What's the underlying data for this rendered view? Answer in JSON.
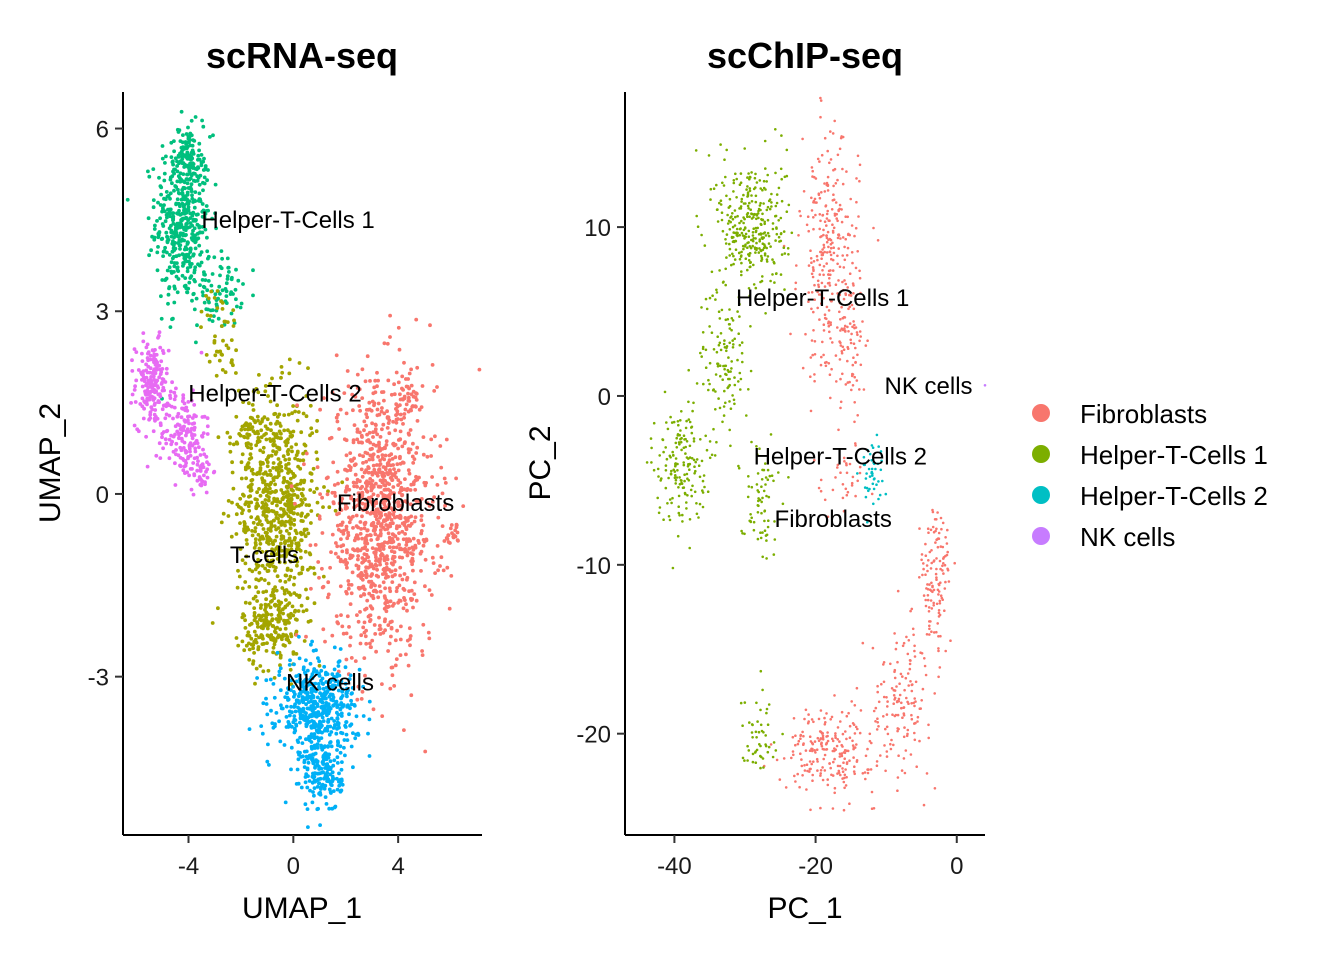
{
  "chart_data": [
    {
      "type": "scatter",
      "title": "scRNA-seq",
      "xlabel": "UMAP_1",
      "ylabel": "UMAP_2",
      "xlim": [
        -6.5,
        7.2
      ],
      "ylim": [
        -5.6,
        6.6
      ],
      "xticks": [
        -4,
        0,
        4
      ],
      "yticks": [
        -3,
        0,
        3,
        6
      ],
      "xtick_labels": [
        "-4",
        "0",
        "4"
      ],
      "ytick_labels": [
        "-3",
        "0",
        "3",
        "6"
      ],
      "grid": false,
      "cluster_labels": [
        {
          "text": "Helper-T-Cells 1",
          "x": -0.2,
          "y": 4.5
        },
        {
          "text": "Helper-T-Cells 2",
          "x": -0.7,
          "y": 1.65
        },
        {
          "text": "Fibroblasts",
          "x": 3.9,
          "y": -0.15
        },
        {
          "text": "T-cells",
          "x": -1.1,
          "y": -1.0
        },
        {
          "text": "NK cells",
          "x": 1.4,
          "y": -3.1
        }
      ],
      "series": [
        {
          "color": "#00BF7D",
          "regions": [
            {
              "x": -4.2,
              "y": 4.5,
              "sx": 0.75,
              "sy": 1.0,
              "n": 480
            },
            {
              "x": -4.0,
              "y": 5.6,
              "sx": 0.3,
              "sy": 0.3,
              "n": 60
            },
            {
              "x": -2.8,
              "y": 3.3,
              "sx": 0.6,
              "sy": 0.4,
              "n": 70
            }
          ]
        },
        {
          "color": "#E76BF3",
          "regions": [
            {
              "x": -5.4,
              "y": 1.8,
              "sx": 0.45,
              "sy": 0.5,
              "n": 180
            },
            {
              "x": -4.2,
              "y": 1.0,
              "sx": 0.6,
              "sy": 0.55,
              "n": 150
            },
            {
              "x": -3.5,
              "y": 0.4,
              "sx": 0.3,
              "sy": 0.3,
              "n": 40
            }
          ]
        },
        {
          "color": "#A3A500",
          "regions": [
            {
              "x": -0.6,
              "y": -0.2,
              "sx": 1.1,
              "sy": 1.3,
              "n": 700
            },
            {
              "x": -1.6,
              "y": 1.0,
              "sx": 0.6,
              "sy": 0.4,
              "n": 60
            },
            {
              "x": -2.8,
              "y": 2.6,
              "sx": 0.5,
              "sy": 0.6,
              "n": 45
            },
            {
              "x": -0.8,
              "y": -2.2,
              "sx": 0.8,
              "sy": 0.5,
              "n": 180
            }
          ]
        },
        {
          "color": "#F8766D",
          "regions": [
            {
              "x": 3.3,
              "y": -0.4,
              "sx": 1.5,
              "sy": 1.6,
              "n": 1050
            },
            {
              "x": 4.4,
              "y": 1.6,
              "sx": 0.3,
              "sy": 0.3,
              "n": 30
            },
            {
              "x": 6.1,
              "y": -0.7,
              "sx": 0.2,
              "sy": 0.15,
              "n": 20
            }
          ]
        },
        {
          "color": "#00B0F6",
          "regions": [
            {
              "x": 0.9,
              "y": -3.5,
              "sx": 1.1,
              "sy": 0.55,
              "n": 500
            },
            {
              "x": 1.1,
              "y": -4.6,
              "sx": 0.55,
              "sy": 0.45,
              "n": 160
            }
          ]
        }
      ]
    },
    {
      "type": "scatter",
      "title": "scChIP-seq",
      "xlabel": "PC_1",
      "ylabel": "PC_2",
      "xlim": [
        -47,
        4
      ],
      "ylim": [
        -26,
        18
      ],
      "xticks": [
        -40,
        -20,
        0
      ],
      "yticks": [
        -20,
        -10,
        0,
        10
      ],
      "xtick_labels": [
        "-40",
        "-20",
        "0"
      ],
      "ytick_labels": [
        "-20",
        "-10",
        "0",
        "10"
      ],
      "grid": false,
      "cluster_labels": [
        {
          "text": "Helper-T-Cells 1",
          "x": -19,
          "y": 5.8
        },
        {
          "text": "NK cells",
          "x": -4,
          "y": 0.6
        },
        {
          "text": "Helper-T-Cells 2",
          "x": -16.5,
          "y": -3.6
        },
        {
          "text": "Fibroblasts",
          "x": -17.5,
          "y": -7.3
        }
      ],
      "series": [
        {
          "color": "#F8766D",
          "regions": [
            {
              "x": -18,
              "y": 8,
              "sx": 3,
              "sy": 5,
              "n": 300
            },
            {
              "x": -15,
              "y": 3,
              "sx": 1.5,
              "sy": 3,
              "n": 60
            },
            {
              "x": -3,
              "y": -11,
              "sx": 1.6,
              "sy": 3.2,
              "n": 130
            },
            {
              "x": -8,
              "y": -18,
              "sx": 3,
              "sy": 3,
              "n": 140
            },
            {
              "x": -18,
              "y": -21,
              "sx": 4.5,
              "sy": 1.8,
              "n": 220
            },
            {
              "x": -16,
              "y": -5,
              "sx": 3,
              "sy": 1.5,
              "n": 35
            }
          ]
        },
        {
          "color": "#7CAE00",
          "regions": [
            {
              "x": -29,
              "y": 10,
              "sx": 3.5,
              "sy": 3,
              "n": 340
            },
            {
              "x": -33,
              "y": 2,
              "sx": 2.5,
              "sy": 3,
              "n": 110
            },
            {
              "x": -39,
              "y": -4,
              "sx": 2.5,
              "sy": 2.5,
              "n": 170
            },
            {
              "x": -28,
              "y": -6,
              "sx": 2,
              "sy": 2.3,
              "n": 70
            },
            {
              "x": -28,
              "y": -20,
              "sx": 1.8,
              "sy": 1.8,
              "n": 50
            }
          ]
        },
        {
          "color": "#00BFC4",
          "regions": [
            {
              "x": -12,
              "y": -4.5,
              "sx": 1.3,
              "sy": 1.4,
              "n": 45
            }
          ]
        },
        {
          "color": "#C77CFF",
          "regions": [
            {
              "x": 12.5,
              "y": 0.6,
              "sx": 0.05,
              "sy": 0.05,
              "n": 1
            }
          ]
        }
      ]
    }
  ],
  "legend": {
    "position": "right",
    "items": [
      {
        "label": "Fibroblasts",
        "color": "#F8766D"
      },
      {
        "label": "Helper-T-Cells 1",
        "color": "#7CAE00"
      },
      {
        "label": "Helper-T-Cells 2",
        "color": "#00BFC4"
      },
      {
        "label": "NK cells",
        "color": "#C77CFF"
      }
    ]
  }
}
